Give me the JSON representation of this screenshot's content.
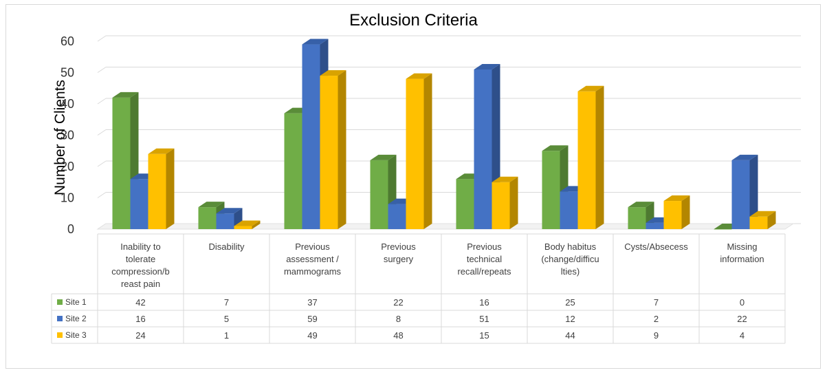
{
  "chart_data": {
    "type": "bar",
    "title": "Exclusion Criteria",
    "ylabel": "Number of Clients",
    "xlabel": "",
    "ylim": [
      0,
      60
    ],
    "yticks": [
      0,
      10,
      20,
      30,
      40,
      50,
      60
    ],
    "grid": true,
    "legend": "data-table-left",
    "style": "3d-clustered-column-with-data-table",
    "categories": [
      [
        "Inability to",
        "tolerate",
        "compression/b",
        "reast pain"
      ],
      [
        "Disability"
      ],
      [
        "Previous",
        "assessment /",
        "mammograms"
      ],
      [
        "Previous",
        "surgery"
      ],
      [
        "Previous",
        "technical",
        "recall/repeats"
      ],
      [
        "Body habitus",
        "(change/difficu",
        "lties)"
      ],
      [
        "Cysts/Absecess"
      ],
      [
        "Missing",
        "information"
      ]
    ],
    "series": [
      {
        "name": "Site 1",
        "color": "#70ad47",
        "side": "#4e7a31",
        "top": "#5a8c39",
        "values": [
          42,
          7,
          37,
          22,
          16,
          25,
          7,
          0
        ]
      },
      {
        "name": "Site 2",
        "color": "#4472c4",
        "side": "#2e4f8a",
        "top": "#3760a8",
        "values": [
          16,
          5,
          59,
          8,
          51,
          12,
          2,
          22
        ]
      },
      {
        "name": "Site 3",
        "color": "#ffc000",
        "side": "#b38600",
        "top": "#d9a300",
        "values": [
          24,
          1,
          49,
          48,
          15,
          44,
          9,
          4
        ]
      }
    ]
  }
}
